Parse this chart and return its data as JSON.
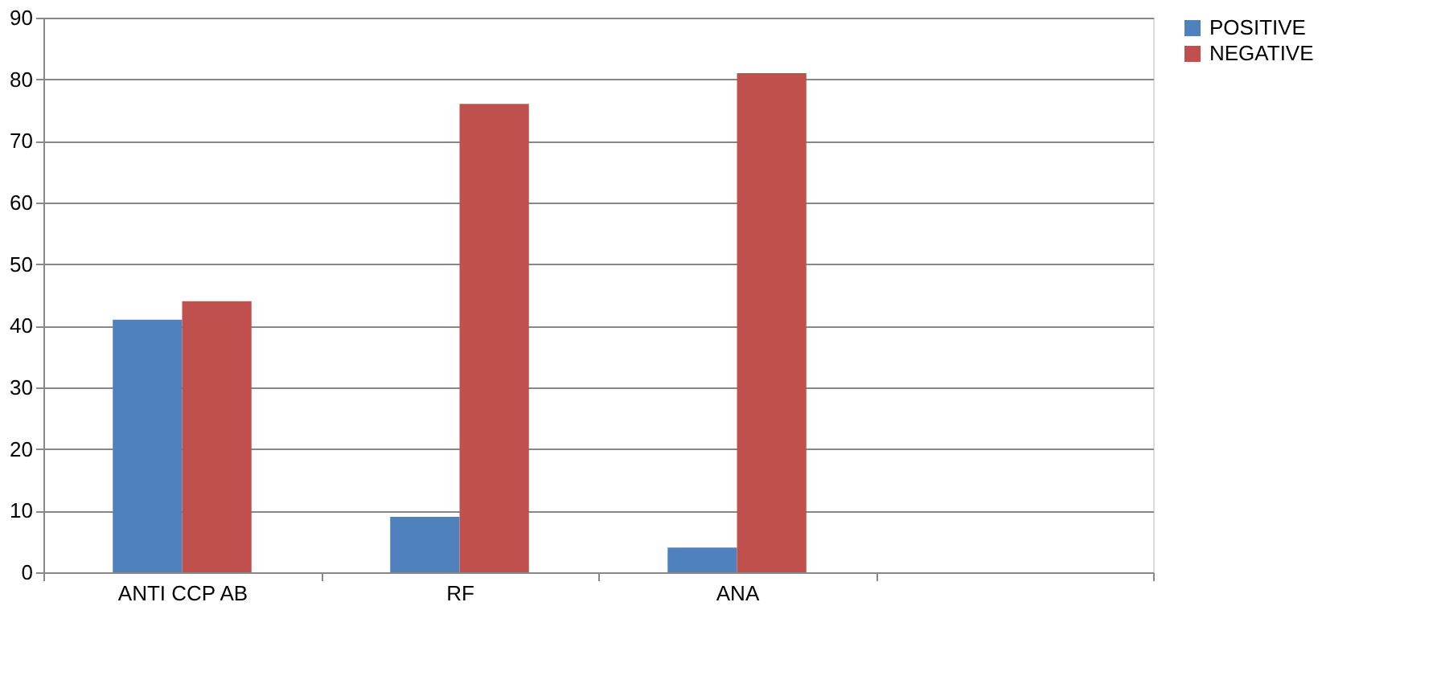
{
  "chart_data": {
    "type": "bar",
    "categories": [
      "ANTI CCP AB",
      "RF",
      "ANA",
      null
    ],
    "series": [
      {
        "name": "POSITIVE",
        "color": "#4f81bd",
        "values": [
          41,
          9,
          4,
          null
        ]
      },
      {
        "name": "NEGATIVE",
        "color": "#c0504d",
        "values": [
          44,
          76,
          81,
          null
        ]
      }
    ],
    "ylim": [
      0,
      90
    ],
    "yticks": [
      0,
      10,
      20,
      30,
      40,
      50,
      60,
      70,
      80,
      90
    ],
    "grid": "y",
    "legend": "right"
  }
}
